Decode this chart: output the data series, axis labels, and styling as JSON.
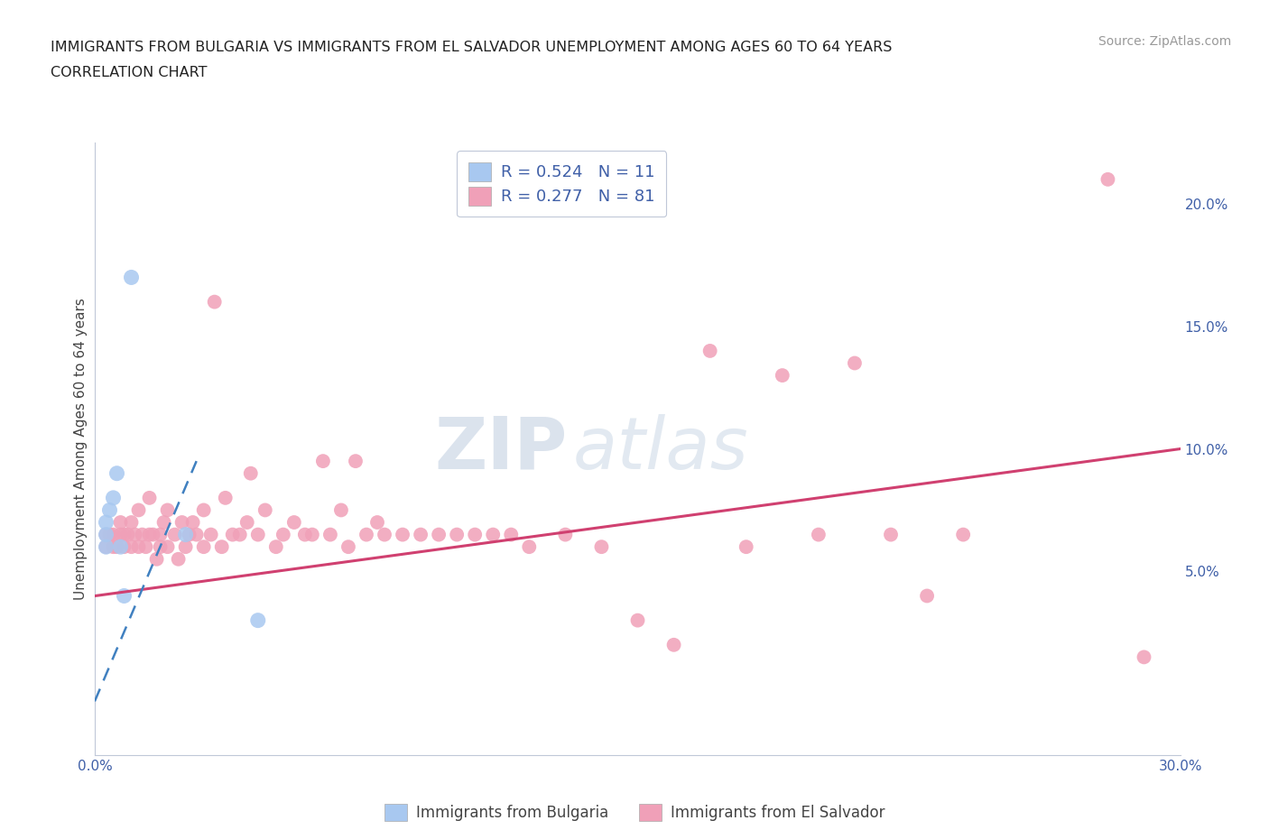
{
  "title_line1": "IMMIGRANTS FROM BULGARIA VS IMMIGRANTS FROM EL SALVADOR UNEMPLOYMENT AMONG AGES 60 TO 64 YEARS",
  "title_line2": "CORRELATION CHART",
  "source_text": "Source: ZipAtlas.com",
  "ylabel": "Unemployment Among Ages 60 to 64 years",
  "xlim": [
    0.0,
    0.3
  ],
  "ylim": [
    -0.025,
    0.225
  ],
  "bulgaria_color": "#a8c8f0",
  "el_salvador_color": "#f0a0b8",
  "bulgaria_line_color": "#4080c0",
  "el_salvador_line_color": "#d04070",
  "r_bulgaria": "0.524",
  "n_bulgaria": "11",
  "r_el_salvador": "0.277",
  "n_el_salvador": "81",
  "legend_label1": "Immigrants from Bulgaria",
  "legend_label2": "Immigrants from El Salvador",
  "watermark_zip": "ZIP",
  "watermark_atlas": "atlas",
  "background_color": "#ffffff",
  "grid_color": "#c8d4e0",
  "bulgaria_x": [
    0.003,
    0.003,
    0.003,
    0.004,
    0.005,
    0.006,
    0.007,
    0.008,
    0.01,
    0.025,
    0.045
  ],
  "bulgaria_y": [
    0.06,
    0.065,
    0.07,
    0.075,
    0.08,
    0.09,
    0.06,
    0.04,
    0.17,
    0.065,
    0.03
  ],
  "el_salvador_x": [
    0.003,
    0.003,
    0.004,
    0.005,
    0.005,
    0.006,
    0.007,
    0.007,
    0.008,
    0.008,
    0.009,
    0.01,
    0.01,
    0.011,
    0.012,
    0.012,
    0.013,
    0.014,
    0.015,
    0.015,
    0.016,
    0.017,
    0.018,
    0.018,
    0.019,
    0.02,
    0.02,
    0.022,
    0.023,
    0.024,
    0.025,
    0.026,
    0.027,
    0.028,
    0.03,
    0.03,
    0.032,
    0.033,
    0.035,
    0.036,
    0.038,
    0.04,
    0.042,
    0.043,
    0.045,
    0.047,
    0.05,
    0.052,
    0.055,
    0.058,
    0.06,
    0.063,
    0.065,
    0.068,
    0.07,
    0.072,
    0.075,
    0.078,
    0.08,
    0.085,
    0.09,
    0.095,
    0.1,
    0.105,
    0.11,
    0.115,
    0.12,
    0.13,
    0.14,
    0.15,
    0.16,
    0.17,
    0.18,
    0.19,
    0.2,
    0.21,
    0.22,
    0.23,
    0.24,
    0.28,
    0.29
  ],
  "el_salvador_y": [
    0.06,
    0.065,
    0.065,
    0.06,
    0.065,
    0.06,
    0.065,
    0.07,
    0.06,
    0.065,
    0.065,
    0.06,
    0.07,
    0.065,
    0.06,
    0.075,
    0.065,
    0.06,
    0.065,
    0.08,
    0.065,
    0.055,
    0.06,
    0.065,
    0.07,
    0.06,
    0.075,
    0.065,
    0.055,
    0.07,
    0.06,
    0.065,
    0.07,
    0.065,
    0.06,
    0.075,
    0.065,
    0.16,
    0.06,
    0.08,
    0.065,
    0.065,
    0.07,
    0.09,
    0.065,
    0.075,
    0.06,
    0.065,
    0.07,
    0.065,
    0.065,
    0.095,
    0.065,
    0.075,
    0.06,
    0.095,
    0.065,
    0.07,
    0.065,
    0.065,
    0.065,
    0.065,
    0.065,
    0.065,
    0.065,
    0.065,
    0.06,
    0.065,
    0.06,
    0.03,
    0.02,
    0.14,
    0.06,
    0.13,
    0.065,
    0.135,
    0.065,
    0.04,
    0.065,
    0.21,
    0.015
  ],
  "es_trend_x0": 0.0,
  "es_trend_y0": 0.04,
  "es_trend_x1": 0.3,
  "es_trend_y1": 0.1,
  "bg_trend_x0": -0.005,
  "bg_trend_y0": -0.02,
  "bg_trend_x1": 0.028,
  "bg_trend_y1": 0.095
}
